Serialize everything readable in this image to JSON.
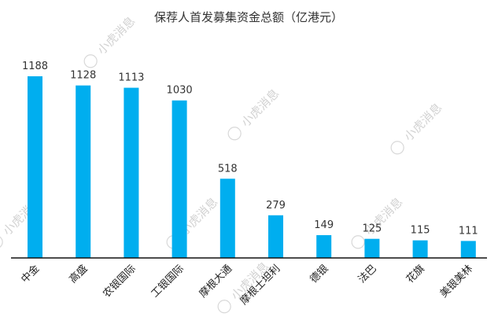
{
  "chart_data": {
    "type": "bar",
    "title": "保荐人首发募集资金总额（亿港元）",
    "xlabel": "",
    "ylabel": "",
    "categories": [
      "中金",
      "高盛",
      "农银国际",
      "工银国际",
      "摩根大通",
      "摩根士坦利",
      "德银",
      "法巴",
      "花旗",
      "美银美林"
    ],
    "values": [
      1188,
      1128,
      1113,
      1030,
      518,
      279,
      149,
      125,
      115,
      111
    ],
    "ylim": [
      0,
      1188
    ],
    "grid": false,
    "legend": "none",
    "bar_color": "#00aeef",
    "axis_color": "#111111"
  },
  "watermark": {
    "text": "小虎消息"
  }
}
